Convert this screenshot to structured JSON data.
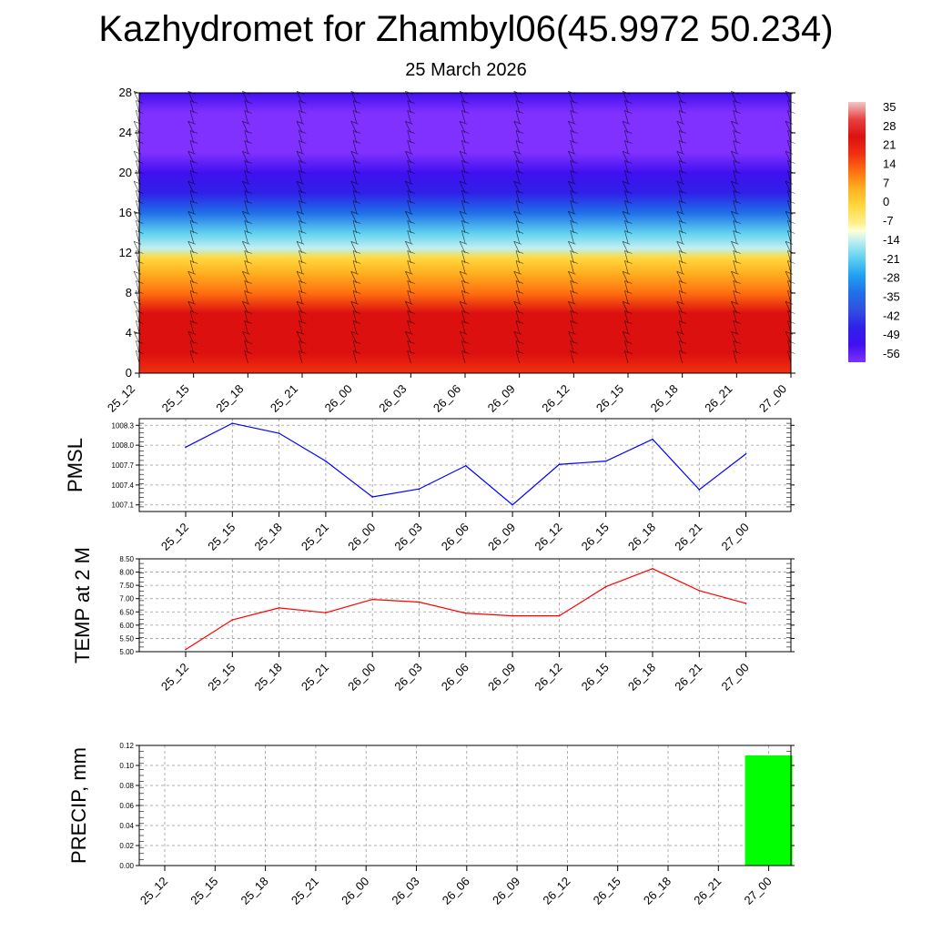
{
  "header": {
    "title": "Kazhydromet for Zhambyl06(45.9972 50.234)",
    "date": "25 March 2026"
  },
  "time_labels": [
    "25_12",
    "25_15",
    "25_18",
    "25_21",
    "26_00",
    "26_03",
    "26_06",
    "26_09",
    "26_12",
    "26_15",
    "26_18",
    "26_21",
    "27_00"
  ],
  "colors": {
    "pmsl_line": "#0000ff",
    "temp_line": "#ff0000",
    "precip_bar": "#00ff00",
    "grid": "#999999"
  },
  "chart_data": [
    {
      "type": "heatmap",
      "y_ticks": [
        "0",
        "4",
        "8",
        "12",
        "16",
        "20",
        "24",
        "28"
      ],
      "ylim": [
        0,
        28
      ],
      "colorbar_labels": [
        "35",
        "28",
        "21",
        "14",
        "7",
        "0",
        "-7",
        "-14",
        "-21",
        "-28",
        "-35",
        "-42",
        "-49",
        "-56"
      ],
      "colorbar_range": [
        -63,
        42
      ],
      "profile": [
        {
          "level": 0,
          "value": 19
        },
        {
          "level": 2,
          "value": 26
        },
        {
          "level": 4,
          "value": 30
        },
        {
          "level": 6,
          "value": 26
        },
        {
          "level": 8,
          "value": 17
        },
        {
          "level": 10,
          "value": 8
        },
        {
          "level": 11.5,
          "value": 0
        },
        {
          "level": 12.5,
          "value": -12
        },
        {
          "level": 14,
          "value": -20
        },
        {
          "level": 16,
          "value": -33
        },
        {
          "level": 18,
          "value": -50
        },
        {
          "level": 20,
          "value": -56
        },
        {
          "level": 22,
          "value": -60
        },
        {
          "level": 24,
          "value": -62
        },
        {
          "level": 26,
          "value": -60
        },
        {
          "level": 28,
          "value": -58
        }
      ]
    },
    {
      "type": "line",
      "name": "PMSL",
      "ylabel": "PMSL",
      "ylim": [
        1007.0,
        1008.4
      ],
      "y_ticks": [
        "1007.1",
        "1007.4",
        "1007.7",
        "1008.0",
        "1008.3"
      ],
      "values": [
        1007.97,
        1008.33,
        1008.18,
        1007.76,
        1007.22,
        1007.34,
        1007.69,
        1007.1,
        1007.71,
        1007.76,
        1008.09,
        1007.33,
        1007.87
      ]
    },
    {
      "type": "line",
      "name": "TEMP at 2 M",
      "ylabel": "TEMP at 2 M",
      "ylim": [
        5.0,
        8.5
      ],
      "y_ticks": [
        "5.00",
        "5.50",
        "6.00",
        "6.50",
        "7.00",
        "7.50",
        "8.00",
        "8.50"
      ],
      "values": [
        5.08,
        6.2,
        6.65,
        6.47,
        6.97,
        6.87,
        6.45,
        6.35,
        6.35,
        7.45,
        8.13,
        7.3,
        6.82
      ]
    },
    {
      "type": "bar",
      "name": "PRECIP, mm",
      "ylabel": "PRECIP, mm",
      "ylim": [
        0,
        0.12
      ],
      "y_ticks": [
        "0.00",
        "0.02",
        "0.04",
        "0.06",
        "0.08",
        "0.10",
        "0.12"
      ],
      "values": [
        0,
        0,
        0,
        0,
        0,
        0,
        0,
        0,
        0,
        0,
        0,
        0,
        0.11
      ]
    }
  ]
}
